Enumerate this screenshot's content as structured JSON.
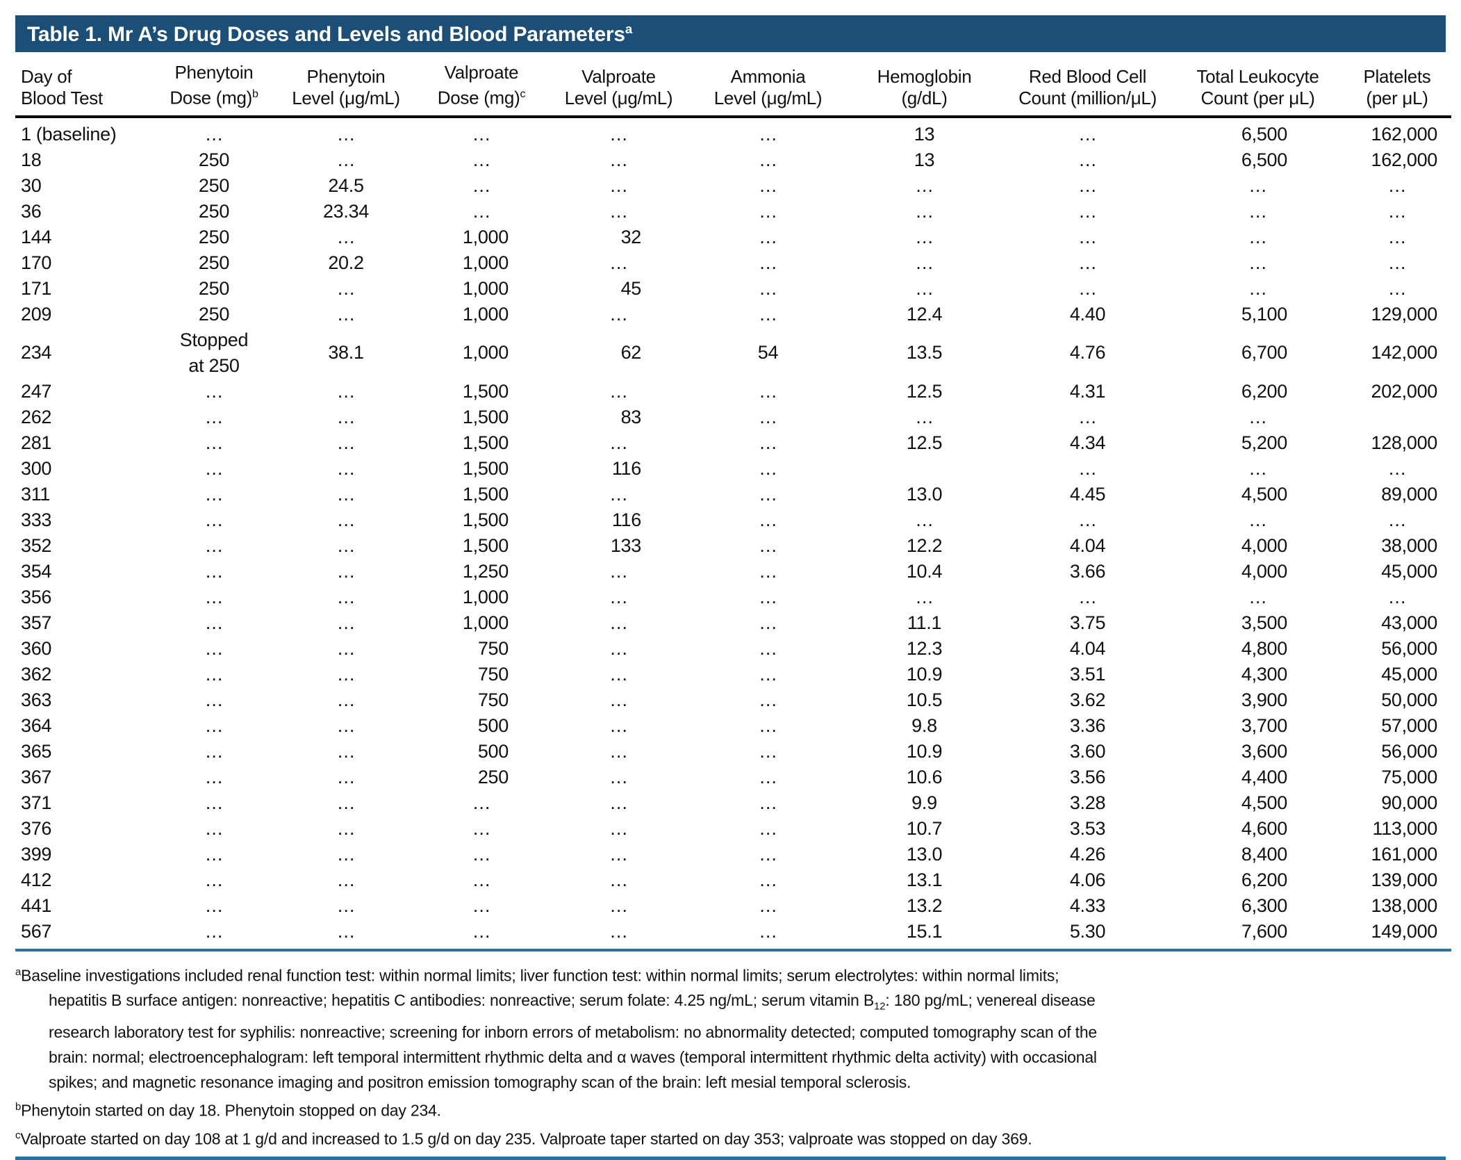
{
  "title": {
    "text": "Table 1. Mr A’s Drug Doses and Levels and Blood Parameters",
    "sup": "a"
  },
  "colors": {
    "title_bar": "#1b4f78",
    "title_text": "#ffffff",
    "rule_dark": "#000000",
    "rule_blue": "#2673a3",
    "body_text": "#111111"
  },
  "table": {
    "ellipsis": "…",
    "columns": [
      {
        "l1": "Day of",
        "l2": "Blood Test",
        "sup": ""
      },
      {
        "l1": "Phenytoin",
        "l2": "Dose (mg)",
        "sup": "b"
      },
      {
        "l1": "Phenytoin",
        "l2": "Level (μg/mL)",
        "sup": ""
      },
      {
        "l1": "Valproate",
        "l2": "Dose (mg)",
        "sup": "c"
      },
      {
        "l1": "Valproate",
        "l2": "Level (μg/mL)",
        "sup": ""
      },
      {
        "l1": "Ammonia",
        "l2": "Level (μg/mL)",
        "sup": ""
      },
      {
        "l1": "Hemoglobin",
        "l2": "(g/dL)",
        "sup": ""
      },
      {
        "l1": "Red Blood Cell",
        "l2": "Count (million/μL)",
        "sup": ""
      },
      {
        "l1": "Total Leukocyte",
        "l2": "Count (per μL)",
        "sup": ""
      },
      {
        "l1": "Platelets",
        "l2": "(per μL)",
        "sup": ""
      }
    ],
    "rows": [
      [
        "1 (baseline)",
        "…",
        "…",
        "…",
        "…",
        "…",
        "13",
        "…",
        "6,500",
        "162,000"
      ],
      [
        "18",
        "250",
        "…",
        "…",
        "…",
        "…",
        "13",
        "…",
        "6,500",
        "162,000"
      ],
      [
        "30",
        "250",
        "24.5",
        "…",
        "…",
        "…",
        "…",
        "…",
        "…",
        "…"
      ],
      [
        "36",
        "250",
        "23.34",
        "…",
        "…",
        "…",
        "…",
        "…",
        "…",
        "…"
      ],
      [
        "144",
        "250",
        "…",
        "1,000",
        "32",
        "…",
        "…",
        "…",
        "…",
        "…"
      ],
      [
        "170",
        "250",
        "20.2",
        "1,000",
        "…",
        "…",
        "…",
        "…",
        "…",
        "…"
      ],
      [
        "171",
        "250",
        "…",
        "1,000",
        "45",
        "…",
        "…",
        "…",
        "…",
        "…"
      ],
      [
        "209",
        "250",
        "…",
        "1,000",
        "…",
        "…",
        "12.4",
        "4.40",
        "5,100",
        "129,000"
      ],
      [
        "234",
        "Stopped\nat 250",
        "38.1",
        "1,000",
        "62",
        "54",
        "13.5",
        "4.76",
        "6,700",
        "142,000"
      ],
      [
        "247",
        "…",
        "…",
        "1,500",
        "…",
        "…",
        "12.5",
        "4.31",
        "6,200",
        "202,000"
      ],
      [
        "262",
        "…",
        "…",
        "1,500",
        "83",
        "…",
        "…",
        "…",
        "…",
        ""
      ],
      [
        "281",
        "…",
        "…",
        "1,500",
        "…",
        "…",
        "12.5",
        "4.34",
        "5,200",
        "128,000"
      ],
      [
        "300",
        "…",
        "…",
        "1,500",
        "116",
        "…",
        "",
        "…",
        "…",
        "…"
      ],
      [
        "311",
        "…",
        "…",
        "1,500",
        "…",
        "…",
        "13.0",
        "4.45",
        "4,500",
        "89,000"
      ],
      [
        "333",
        "…",
        "…",
        "1,500",
        "116",
        "…",
        "…",
        "…",
        "…",
        "…"
      ],
      [
        "352",
        "…",
        "…",
        "1,500",
        "133",
        "…",
        "12.2",
        "4.04",
        "4,000",
        "38,000"
      ],
      [
        "354",
        "…",
        "…",
        "1,250",
        "…",
        "…",
        "10.4",
        "3.66",
        "4,000",
        "45,000"
      ],
      [
        "356",
        "…",
        "…",
        "1,000",
        "…",
        "…",
        "…",
        "…",
        "…",
        "…"
      ],
      [
        "357",
        "…",
        "…",
        "1,000",
        "…",
        "…",
        "11.1",
        "3.75",
        "3,500",
        "43,000"
      ],
      [
        "360",
        "…",
        "…",
        "750",
        "…",
        "…",
        "12.3",
        "4.04",
        "4,800",
        "56,000"
      ],
      [
        "362",
        "…",
        "…",
        "750",
        "…",
        "…",
        "10.9",
        "3.51",
        "4,300",
        "45,000"
      ],
      [
        "363",
        "…",
        "…",
        "750",
        "…",
        "…",
        "10.5",
        "3.62",
        "3,900",
        "50,000"
      ],
      [
        "364",
        "…",
        "…",
        "500",
        "…",
        "…",
        "9.8",
        "3.36",
        "3,700",
        "57,000"
      ],
      [
        "365",
        "…",
        "…",
        "500",
        "…",
        "…",
        "10.9",
        "3.60",
        "3,600",
        "56,000"
      ],
      [
        "367",
        "…",
        "…",
        "250",
        "…",
        "…",
        "10.6",
        "3.56",
        "4,400",
        "75,000"
      ],
      [
        "371",
        "…",
        "…",
        "…",
        "…",
        "…",
        "9.9",
        "3.28",
        "4,500",
        "90,000"
      ],
      [
        "376",
        "…",
        "…",
        "…",
        "…",
        "…",
        "10.7",
        "3.53",
        "4,600",
        "113,000"
      ],
      [
        "399",
        "…",
        "…",
        "…",
        "…",
        "…",
        "13.0",
        "4.26",
        "8,400",
        "161,000"
      ],
      [
        "412",
        "…",
        "…",
        "…",
        "…",
        "…",
        "13.1",
        "4.06",
        "6,200",
        "139,000"
      ],
      [
        "441",
        "…",
        "…",
        "…",
        "…",
        "…",
        "13.2",
        "4.33",
        "6,300",
        "138,000"
      ],
      [
        "567",
        "…",
        "…",
        "…",
        "…",
        "…",
        "15.1",
        "5.30",
        "7,600",
        "149,000"
      ]
    ]
  },
  "footnotes": [
    {
      "marker": "a",
      "lines": [
        [
          {
            "t": "Baseline investigations included renal function test: within normal limits; liver function test: within normal limits; serum electrolytes: within normal limits;"
          }
        ],
        [
          {
            "t": "hepatitis B surface antigen: nonreactive; hepatitis C antibodies: nonreactive; serum folate: 4.25 ng/mL; serum vitamin B"
          },
          {
            "sub": "12"
          },
          {
            "t": ": 180 pg/mL; venereal disease"
          }
        ],
        [
          {
            "t": "research laboratory test for syphilis: nonreactive; screening for inborn errors of metabolism: no abnormality detected; computed tomography scan of the"
          }
        ],
        [
          {
            "t": "brain: normal; electroencephalogram: left temporal intermittent rhythmic delta and α waves (temporal intermittent rhythmic delta activity) with occasional"
          }
        ],
        [
          {
            "t": "spikes; and magnetic resonance imaging and positron emission tomography scan of the brain: left mesial temporal sclerosis."
          }
        ]
      ]
    },
    {
      "marker": "b",
      "lines": [
        [
          {
            "t": "Phenytoin started on day 18. Phenytoin stopped on day 234."
          }
        ]
      ]
    },
    {
      "marker": "c",
      "lines": [
        [
          {
            "t": "Valproate started on day 108 at 1 g/d and increased to 1.5 g/d on day 235. Valproate taper started on day 353; valproate was stopped on day 369."
          }
        ]
      ]
    }
  ]
}
